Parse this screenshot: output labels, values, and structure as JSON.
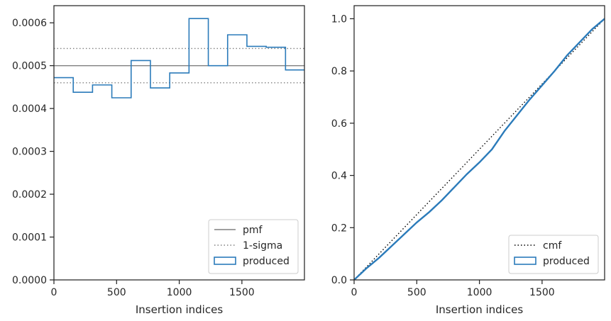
{
  "chart_data": [
    {
      "type": "line",
      "subtype": "step-histogram",
      "xlabel": "Insertion indices",
      "ylabel": "",
      "xlim": [
        0,
        1999
      ],
      "ylim": [
        0,
        0.00064
      ],
      "x_ticks": [
        0,
        500,
        1000,
        1500
      ],
      "x_tick_labels": [
        "0",
        "500",
        "1000",
        "1500"
      ],
      "y_ticks": [
        0,
        0.0001,
        0.0002,
        0.0003,
        0.0004,
        0.0005,
        0.0006
      ],
      "y_tick_labels": [
        "0.0000",
        "0.0001",
        "0.0002",
        "0.0003",
        "0.0004",
        "0.0005",
        "0.0006"
      ],
      "grid": false,
      "legend_position": "lower right",
      "pmf": 0.0005,
      "sigma_band": [
        0.00046,
        0.00054
      ],
      "bin_edges": [
        0,
        154,
        308,
        462,
        616,
        770,
        924,
        1078,
        1232,
        1386,
        1540,
        1694,
        1848,
        1999
      ],
      "produced": [
        0.000472,
        0.000438,
        0.000455,
        0.000425,
        0.000512,
        0.000448,
        0.000483,
        0.00061,
        0.0005,
        0.000572,
        0.000545,
        0.000543,
        0.00049
      ],
      "series": [
        {
          "name": "pmf",
          "color": "#808080",
          "style": "solid"
        },
        {
          "name": "1-sigma",
          "color": "#808080",
          "style": "dotted"
        },
        {
          "name": "produced",
          "color": "#2b7bba",
          "style": "step"
        }
      ]
    },
    {
      "type": "line",
      "xlabel": "Insertion indices",
      "ylabel": "",
      "xlim": [
        0,
        1999
      ],
      "ylim": [
        0,
        1.05
      ],
      "x_ticks": [
        0,
        500,
        1000,
        1500
      ],
      "x_tick_labels": [
        "0",
        "500",
        "1000",
        "1500"
      ],
      "y_ticks": [
        0,
        0.2,
        0.4,
        0.6,
        0.8,
        1.0
      ],
      "y_tick_labels": [
        "0.0",
        "0.2",
        "0.4",
        "0.6",
        "0.8",
        "1.0"
      ],
      "grid": false,
      "legend_position": "lower right",
      "series": [
        {
          "name": "cmf",
          "color": "#000000",
          "style": "dotted",
          "x": [
            0,
            1999
          ],
          "y": [
            0,
            1
          ]
        },
        {
          "name": "produced",
          "color": "#2b7bba",
          "style": "solid",
          "x": [
            0,
            100,
            200,
            300,
            400,
            500,
            600,
            700,
            800,
            900,
            1000,
            1100,
            1200,
            1300,
            1400,
            1500,
            1600,
            1700,
            1800,
            1900,
            1999
          ],
          "y": [
            0,
            0.045,
            0.085,
            0.13,
            0.175,
            0.22,
            0.26,
            0.305,
            0.355,
            0.405,
            0.45,
            0.5,
            0.57,
            0.63,
            0.69,
            0.745,
            0.8,
            0.86,
            0.91,
            0.96,
            1.0
          ]
        }
      ]
    }
  ]
}
